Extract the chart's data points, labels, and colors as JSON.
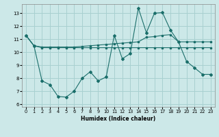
{
  "xlabel": "Humidex (Indice chaleur)",
  "xlim": [
    -0.5,
    23.5
  ],
  "ylim": [
    5.8,
    13.7
  ],
  "yticks": [
    6,
    7,
    8,
    9,
    10,
    11,
    12,
    13
  ],
  "xticks": [
    0,
    1,
    2,
    3,
    4,
    5,
    6,
    7,
    8,
    9,
    10,
    11,
    12,
    13,
    14,
    15,
    16,
    17,
    18,
    19,
    20,
    21,
    22,
    23
  ],
  "bg_color": "#cce8e8",
  "grid_color": "#a8d0d0",
  "line_color": "#1a6e6a",
  "line_upper_x": [
    0,
    1,
    2,
    3,
    4,
    5,
    6,
    7,
    8,
    9,
    10,
    11,
    12,
    13,
    14,
    15,
    16,
    17,
    18,
    19,
    20,
    21,
    22,
    23
  ],
  "line_upper_y": [
    11.3,
    10.5,
    10.4,
    10.4,
    10.4,
    10.4,
    10.4,
    10.45,
    10.5,
    10.55,
    10.6,
    10.65,
    10.7,
    10.75,
    10.8,
    11.15,
    11.2,
    11.3,
    11.35,
    10.8,
    10.8,
    10.8,
    10.8,
    10.8
  ],
  "line_flat_x": [
    0,
    1,
    2,
    3,
    4,
    5,
    6,
    7,
    8,
    9,
    10,
    11,
    12,
    13,
    14,
    15,
    16,
    17,
    18,
    19,
    20,
    21,
    22,
    23
  ],
  "line_flat_y": [
    11.3,
    10.5,
    10.35,
    10.35,
    10.35,
    10.35,
    10.35,
    10.35,
    10.35,
    10.35,
    10.35,
    10.35,
    10.35,
    10.35,
    10.35,
    10.35,
    10.35,
    10.35,
    10.35,
    10.35,
    10.35,
    10.35,
    10.35,
    10.35
  ],
  "line_volatile_x": [
    0,
    1,
    2,
    3,
    4,
    5,
    6,
    7,
    8,
    9,
    10,
    11,
    12,
    13,
    14,
    15,
    16,
    17,
    18,
    19,
    20,
    21,
    22,
    23
  ],
  "line_volatile_y": [
    11.3,
    10.5,
    7.8,
    7.5,
    6.6,
    6.55,
    7.0,
    8.0,
    8.5,
    7.8,
    8.1,
    11.3,
    9.5,
    9.9,
    13.4,
    11.5,
    13.0,
    13.05,
    11.7,
    10.8,
    9.3,
    8.8,
    8.3,
    8.3
  ]
}
